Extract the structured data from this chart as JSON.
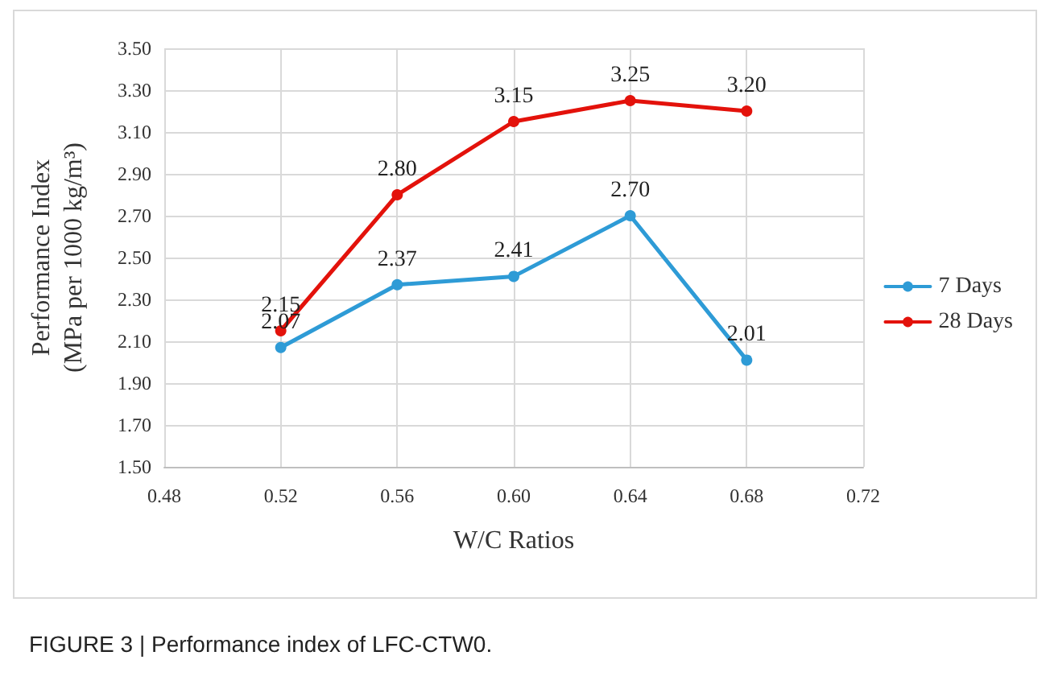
{
  "chart_data": {
    "type": "line",
    "xlabel": "W/C Ratios",
    "ylabel": "Performance Index\n(MPa per 1000 kg/m³)",
    "x": [
      0.52,
      0.56,
      0.6,
      0.64,
      0.68
    ],
    "series": [
      {
        "name": "7 Days",
        "color": "#2e9bd6",
        "values": [
          2.07,
          2.37,
          2.41,
          2.7,
          2.01
        ],
        "value_labels": [
          "2.07",
          "2.37",
          "2.41",
          "2.70",
          "2.01"
        ]
      },
      {
        "name": "28 Days",
        "color": "#e3120b",
        "values": [
          2.15,
          2.8,
          3.15,
          3.25,
          3.2
        ],
        "value_labels": [
          "2.15",
          "2.80",
          "3.15",
          "3.25",
          "3.20"
        ]
      }
    ],
    "xlim": [
      0.48,
      0.72
    ],
    "xticks": [
      {
        "value": 0.48,
        "label": "0.48"
      },
      {
        "value": 0.52,
        "label": "0.52"
      },
      {
        "value": 0.56,
        "label": "0.56"
      },
      {
        "value": 0.6,
        "label": "0.60"
      },
      {
        "value": 0.64,
        "label": "0.64"
      },
      {
        "value": 0.68,
        "label": "0.68"
      },
      {
        "value": 0.72,
        "label": "0.72"
      }
    ],
    "ylim": [
      1.5,
      3.5
    ],
    "yticks": [
      {
        "value": 1.5,
        "label": "1.50"
      },
      {
        "value": 1.7,
        "label": "1.70"
      },
      {
        "value": 1.9,
        "label": "1.90"
      },
      {
        "value": 2.1,
        "label": "2.10"
      },
      {
        "value": 2.3,
        "label": "2.30"
      },
      {
        "value": 2.5,
        "label": "2.50"
      },
      {
        "value": 2.7,
        "label": "2.70"
      },
      {
        "value": 2.9,
        "label": "2.90"
      },
      {
        "value": 3.1,
        "label": "3.10"
      },
      {
        "value": 3.3,
        "label": "3.30"
      },
      {
        "value": 3.5,
        "label": "3.50"
      }
    ],
    "grid": true,
    "legend": "right",
    "marker": "circle",
    "line_style": "solid",
    "annotations": [
      "FIGURE 3 | Performance index of LFC-CTW0."
    ]
  }
}
